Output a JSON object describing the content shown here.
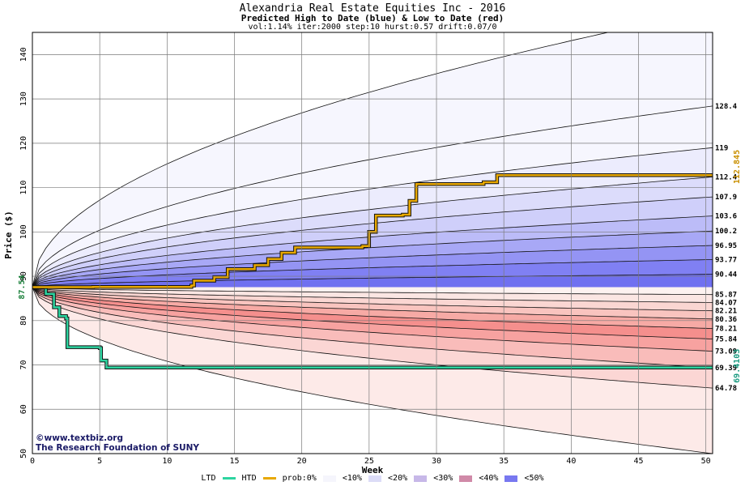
{
  "chart_data": {
    "type": "area",
    "title": "Alexandria Real Estate Equities Inc - 2016",
    "subtitle": "Predicted High to Date (blue) &  Low to Date (red)",
    "params": "vol:1.14% iter:2000 step:10 hurst:0.57 drift:0.07/0",
    "xlabel": "Week",
    "ylabel": "Price ($)",
    "xlim": [
      0,
      50.5
    ],
    "ylim": [
      50,
      145
    ],
    "xticks": [
      0,
      5,
      10,
      15,
      20,
      25,
      30,
      35,
      40,
      45,
      50
    ],
    "yticks": [
      50,
      60,
      70,
      80,
      90,
      100,
      110,
      120,
      130,
      140
    ],
    "grid": true,
    "start_price": 87.54,
    "start_label": "87.54",
    "upper_bands": [
      {
        "label": "90.44",
        "end": 90.44
      },
      {
        "label": "93.77",
        "end": 93.77
      },
      {
        "label": "96.95",
        "end": 96.95
      },
      {
        "label": "100.2",
        "end": 100.2
      },
      {
        "label": "103.6",
        "end": 103.6
      },
      {
        "label": "107.9",
        "end": 107.9
      },
      {
        "label": "112.4",
        "end": 112.4
      },
      {
        "label": "119",
        "end": 119
      },
      {
        "label": "128.4",
        "end": 128.4
      }
    ],
    "lower_bands": [
      {
        "label": "85.87",
        "end": 85.87
      },
      {
        "label": "84.07",
        "end": 84.07
      },
      {
        "label": "82.21",
        "end": 82.21
      },
      {
        "label": "80.36",
        "end": 80.36
      },
      {
        "label": "78.21",
        "end": 78.21
      },
      {
        "label": "75.84",
        "end": 75.84
      },
      {
        "label": "73.09",
        "end": 73.09
      },
      {
        "label": "69.39",
        "end": 69.39
      },
      {
        "label": "64.78",
        "end": 64.78
      }
    ],
    "outer_upper_envelope_end": 150,
    "outer_lower_envelope_end": 50,
    "htd": {
      "name": "HTD",
      "color": "#e8a800",
      "final_label": "112.845",
      "points": [
        [
          0,
          87.54
        ],
        [
          4.5,
          87.6
        ],
        [
          11.8,
          87.9
        ],
        [
          12,
          89.0
        ],
        [
          13.5,
          89.8
        ],
        [
          14.5,
          91.6
        ],
        [
          16.5,
          92.5
        ],
        [
          17.5,
          93.9
        ],
        [
          18.5,
          95.3
        ],
        [
          19.5,
          96.5
        ],
        [
          24.5,
          96.8
        ],
        [
          25,
          100
        ],
        [
          25.5,
          103.7
        ],
        [
          27.5,
          103.9
        ],
        [
          28,
          107
        ],
        [
          28.5,
          110.8
        ],
        [
          33.5,
          111.2
        ],
        [
          34.5,
          112.8
        ],
        [
          50.5,
          112.85
        ]
      ]
    },
    "ltd": {
      "name": "LTD",
      "color": "#2dd4a0",
      "final_label": "69.4103",
      "points": [
        [
          0,
          87.54
        ],
        [
          1,
          86
        ],
        [
          1.6,
          83
        ],
        [
          2,
          81
        ],
        [
          2.5,
          80.5
        ],
        [
          2.6,
          74
        ],
        [
          5,
          73.8
        ],
        [
          5.1,
          71
        ],
        [
          5.5,
          69.4
        ],
        [
          50.5,
          69.41
        ]
      ]
    },
    "legend": {
      "ltd": "LTD",
      "htd": "HTD",
      "prob_label": "prob:0%",
      "items": [
        "<10%",
        "<20%",
        "<30%",
        "<40%",
        "<50%"
      ],
      "colors": [
        "#f5f5fc",
        "#dcdcf7",
        "#c7b8e8",
        "#d08aa8",
        "#7878f0"
      ]
    },
    "credits": [
      "www.textbiz.org",
      "The Research Foundation of SUNY"
    ]
  }
}
